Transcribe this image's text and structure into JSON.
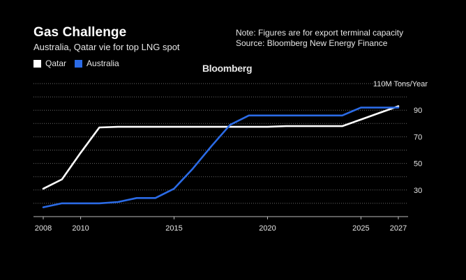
{
  "header": {
    "title": "Gas Challenge",
    "subtitle": "Australia, Qatar vie for top LNG spot",
    "note": "Note: Figures are for export terminal capacity",
    "source": "Source: Bloomberg New Energy Finance",
    "brand": "Bloomberg"
  },
  "colors": {
    "qatar": "#ffffff",
    "australia": "#2b6be6",
    "grid": "#6b6b6b"
  },
  "chart_data": {
    "type": "line",
    "title": "Gas Challenge",
    "subtitle": "Australia, Qatar vie for top LNG spot",
    "ylabel": "110M Tons/Year",
    "xlim": [
      2008,
      2027
    ],
    "ylim": [
      10,
      110
    ],
    "x_ticks": [
      2008,
      2010,
      2015,
      2020,
      2025,
      2027
    ],
    "y_ticks": [
      30,
      50,
      70,
      90
    ],
    "grid": "horizontal dotted",
    "legend": "top-left",
    "series": [
      {
        "name": "Qatar",
        "color": "#ffffff",
        "x": [
          2008,
          2009,
          2010,
          2011,
          2012,
          2013,
          2014,
          2015,
          2016,
          2017,
          2018,
          2019,
          2020,
          2021,
          2022,
          2023,
          2024,
          2025,
          2026,
          2027
        ],
        "values": [
          31,
          38,
          58,
          77,
          77.5,
          77.5,
          77.5,
          77.5,
          77.5,
          77.5,
          77.5,
          77.5,
          77.5,
          78,
          78,
          78,
          78,
          83,
          88,
          93
        ]
      },
      {
        "name": "Australia",
        "color": "#2b6be6",
        "x": [
          2008,
          2009,
          2010,
          2011,
          2012,
          2013,
          2014,
          2015,
          2016,
          2017,
          2018,
          2019,
          2020,
          2021,
          2022,
          2023,
          2024,
          2025,
          2026,
          2027
        ],
        "values": [
          17,
          20,
          20,
          20,
          21,
          24,
          24,
          31,
          46,
          63,
          79,
          86,
          86,
          86,
          86,
          86,
          86,
          92,
          92,
          92
        ]
      }
    ]
  }
}
